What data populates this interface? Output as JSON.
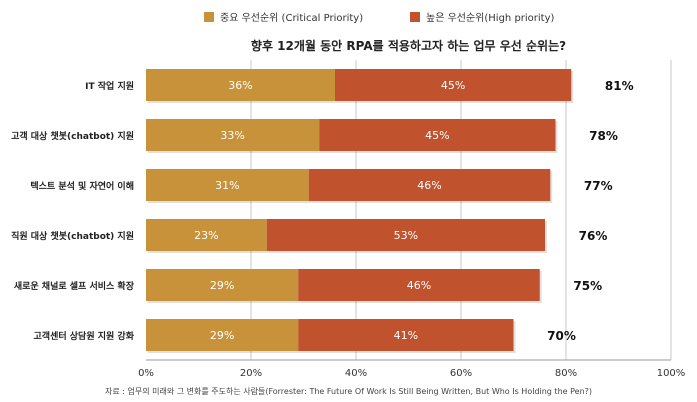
{
  "legend": {
    "critical_label": "중요 우선순위 (Critical Priority)",
    "high_label": "높은 우선순위(High priority)"
  },
  "colors": {
    "critical": "#c8923a",
    "high": "#c0532e",
    "grid": "#c8c8c8"
  },
  "source": "자료 : 업무의 미래와 그 변화를 주도하는 사람들(Forrester: The Future Of Work Is Still Being Written, But Who Is Holding the Pen?)",
  "chart_data": {
    "type": "bar",
    "orientation": "horizontal",
    "stacked": true,
    "title": "향후 12개월 동안 RPA를 적용하고자 하는 업무 우선 순위는?",
    "categories": [
      "IT 작업 지원",
      "고객 대상 챗봇(chatbot) 지원",
      "텍스트 분석 및 자연어 이해",
      "직원 대상 챗봇(chatbot) 지원",
      "새로운 채널로 셀프 서비스 확장",
      "고객센터 상담원 지원 강화"
    ],
    "series": [
      {
        "name": "중요 우선순위 (Critical Priority)",
        "values": [
          36,
          33,
          31,
          23,
          29,
          29
        ]
      },
      {
        "name": "높은 우선순위(High priority)",
        "values": [
          45,
          45,
          46,
          53,
          46,
          41
        ]
      }
    ],
    "value_labels": [
      [
        "36%",
        "33%",
        "31%",
        "23%",
        "29%",
        "29%"
      ],
      [
        "45%",
        "45%",
        "46%",
        "53%",
        "46%",
        "41%"
      ]
    ],
    "totals": [
      "81%",
      "78%",
      "77%",
      "76%",
      "75%",
      "70%"
    ],
    "xlim": [
      0,
      100
    ],
    "xticks": [
      0,
      20,
      40,
      60,
      80,
      100
    ],
    "xtick_labels": [
      "0%",
      "20%",
      "40%",
      "60%",
      "80%",
      "100%"
    ],
    "grid": true,
    "legend_position": "top"
  }
}
